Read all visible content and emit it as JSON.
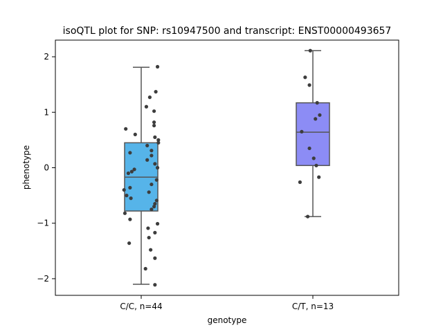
{
  "chart_data": {
    "type": "box",
    "title": "isoQTL plot for SNP: rs10947500 and transcript: ENST00000493657",
    "xlabel": "genotype",
    "ylabel": "phenotype",
    "ylim": [
      -2.3,
      2.3
    ],
    "yticks": [
      -2,
      -1,
      0,
      1,
      2
    ],
    "ytick_labels": [
      "−2",
      "−1",
      "0",
      "1",
      "2"
    ],
    "grid": false,
    "groups": [
      {
        "label": "C/C, n=44",
        "color": "#56b4e9",
        "box": {
          "whisker_low": -2.1,
          "q1": -0.78,
          "median": -0.17,
          "q3": 0.45,
          "whisker_high": 1.81
        },
        "points": [
          {
            "x": 0.19,
            "y": 1.82
          },
          {
            "x": 0.17,
            "y": 1.37
          },
          {
            "x": 0.1,
            "y": 1.27
          },
          {
            "x": 0.06,
            "y": 1.1
          },
          {
            "x": 0.15,
            "y": 1.02
          },
          {
            "x": 0.15,
            "y": 0.82
          },
          {
            "x": 0.15,
            "y": 0.76
          },
          {
            "x": -0.18,
            "y": 0.7
          },
          {
            "x": -0.07,
            "y": 0.6
          },
          {
            "x": 0.16,
            "y": 0.55
          },
          {
            "x": 0.2,
            "y": 0.5
          },
          {
            "x": 0.2,
            "y": 0.45
          },
          {
            "x": 0.07,
            "y": 0.4
          },
          {
            "x": 0.12,
            "y": 0.31
          },
          {
            "x": -0.13,
            "y": 0.27
          },
          {
            "x": 0.12,
            "y": 0.22
          },
          {
            "x": 0.07,
            "y": 0.14
          },
          {
            "x": 0.16,
            "y": 0.07
          },
          {
            "x": 0.19,
            "y": 0.0
          },
          {
            "x": -0.08,
            "y": -0.03
          },
          {
            "x": -0.11,
            "y": -0.07
          },
          {
            "x": -0.15,
            "y": -0.1
          },
          {
            "x": 0.18,
            "y": -0.22
          },
          {
            "x": 0.12,
            "y": -0.3
          },
          {
            "x": -0.13,
            "y": -0.36
          },
          {
            "x": -0.2,
            "y": -0.4
          },
          {
            "x": 0.09,
            "y": -0.44
          },
          {
            "x": -0.17,
            "y": -0.5
          },
          {
            "x": -0.12,
            "y": -0.55
          },
          {
            "x": 0.18,
            "y": -0.59
          },
          {
            "x": 0.16,
            "y": -0.65
          },
          {
            "x": 0.15,
            "y": -0.7
          },
          {
            "x": 0.12,
            "y": -0.75
          },
          {
            "x": -0.19,
            "y": -0.82
          },
          {
            "x": -0.13,
            "y": -0.93
          },
          {
            "x": 0.19,
            "y": -1.01
          },
          {
            "x": 0.08,
            "y": -1.09
          },
          {
            "x": 0.16,
            "y": -1.17
          },
          {
            "x": 0.09,
            "y": -1.26
          },
          {
            "x": -0.14,
            "y": -1.36
          },
          {
            "x": 0.11,
            "y": -1.48
          },
          {
            "x": 0.16,
            "y": -1.63
          },
          {
            "x": 0.05,
            "y": -1.82
          },
          {
            "x": 0.16,
            "y": -2.11
          }
        ]
      },
      {
        "label": "C/T, n=13",
        "color": "#8c8cf5",
        "box": {
          "whisker_low": -0.88,
          "q1": 0.04,
          "median": 0.64,
          "q3": 1.17,
          "whisker_high": 2.11
        },
        "points": [
          {
            "x": -0.03,
            "y": 2.11
          },
          {
            "x": -0.09,
            "y": 1.63
          },
          {
            "x": -0.04,
            "y": 1.49
          },
          {
            "x": 0.05,
            "y": 1.17
          },
          {
            "x": 0.08,
            "y": 0.95
          },
          {
            "x": 0.03,
            "y": 0.88
          },
          {
            "x": -0.13,
            "y": 0.65
          },
          {
            "x": -0.04,
            "y": 0.35
          },
          {
            "x": 0.01,
            "y": 0.17
          },
          {
            "x": 0.04,
            "y": 0.04
          },
          {
            "x": 0.07,
            "y": -0.17
          },
          {
            "x": -0.15,
            "y": -0.26
          },
          {
            "x": -0.06,
            "y": -0.88
          }
        ]
      }
    ]
  }
}
